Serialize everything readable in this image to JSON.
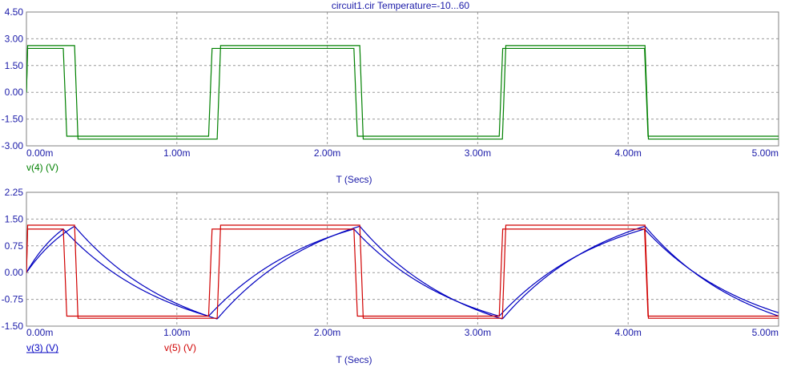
{
  "title": "circuit1.cir Temperature=-10...60",
  "chart_data": [
    {
      "type": "line",
      "xlabel": "T (Secs)",
      "ylabel": "",
      "xlim": [
        0,
        0.005
      ],
      "ylim": [
        -3.0,
        4.5
      ],
      "x_ticks": [
        "0.00m",
        "1.00m",
        "2.00m",
        "3.00m",
        "4.00m",
        "5.00m"
      ],
      "y_ticks": [
        "4.50",
        "3.00",
        "1.50",
        "0.00",
        "-1.50",
        "-3.00"
      ],
      "grid": true,
      "series": [
        {
          "name": "v(4) (V)",
          "color": "#008000",
          "legend_underline": false,
          "kind": "square",
          "high": 2.62,
          "low": -2.62,
          "period": 0.001896,
          "first_low": 0.00032
        },
        {
          "name": "",
          "color": "#008000",
          "legend_underline": false,
          "kind": "square",
          "high": 2.46,
          "low": -2.46,
          "period": 0.001932,
          "first_low": 0.000245
        }
      ]
    },
    {
      "type": "line",
      "xlabel": "T (Secs)",
      "ylabel": "",
      "xlim": [
        0,
        0.005
      ],
      "ylim": [
        -1.5,
        2.25
      ],
      "x_ticks": [
        "0.00m",
        "1.00m",
        "2.00m",
        "3.00m",
        "4.00m",
        "5.00m"
      ],
      "y_ticks": [
        "2.25",
        "1.50",
        "0.75",
        "0.00",
        "-0.75",
        "-1.50"
      ],
      "grid": true,
      "series": [
        {
          "name": "v(3) (V)",
          "color": "#0000c0",
          "legend_underline": true,
          "kind": "rc",
          "high": 1.3,
          "low": -1.3,
          "target": 2.25,
          "period": 0.001896,
          "first_low": 0.00032
        },
        {
          "name": "",
          "color": "#0000c0",
          "legend_underline": false,
          "kind": "rc",
          "high": 1.22,
          "low": -1.22,
          "target": 2.1,
          "period": 0.001932,
          "first_low": 0.000245
        },
        {
          "name": "v(5) (V)",
          "color": "#d00000",
          "legend_underline": false,
          "kind": "square",
          "high": 1.33,
          "low": -1.28,
          "period": 0.001896,
          "first_low": 0.00032
        },
        {
          "name": "",
          "color": "#d00000",
          "legend_underline": false,
          "kind": "square",
          "high": 1.22,
          "low": -1.22,
          "period": 0.001932,
          "first_low": 0.000245
        }
      ]
    }
  ]
}
